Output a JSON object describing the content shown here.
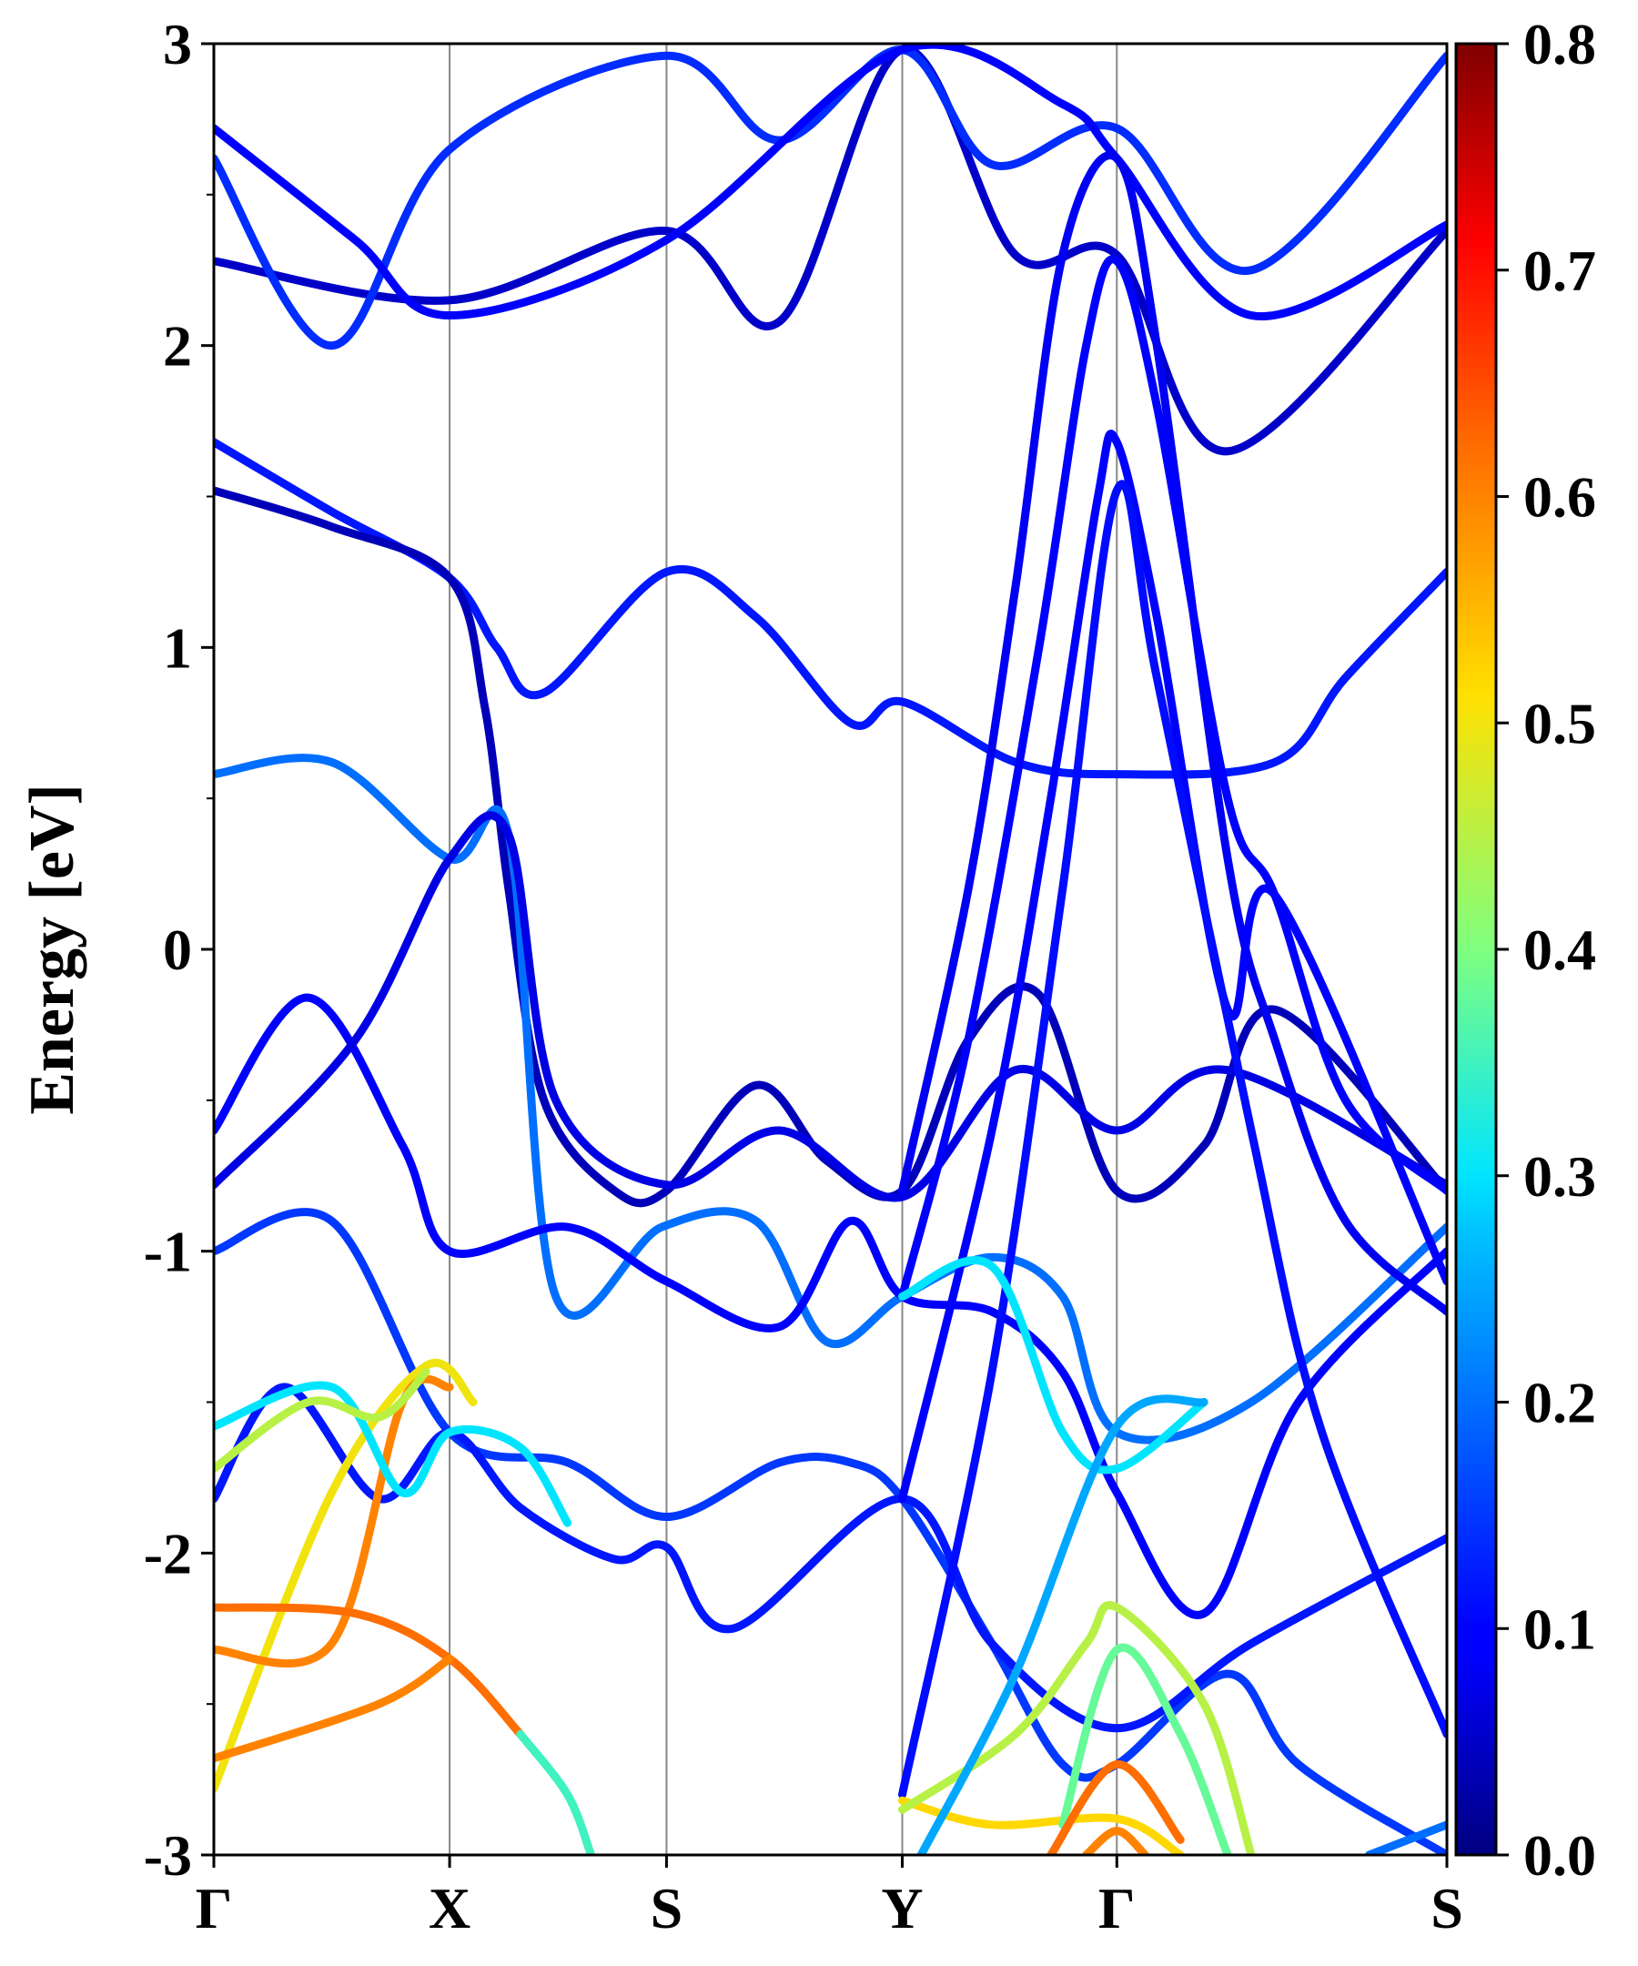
{
  "chart_data": {
    "type": "line",
    "title": "",
    "xlabel": "",
    "ylabel": "Energy [eV]",
    "ylim": [
      -3,
      3
    ],
    "yticks": [
      "-3",
      "-2",
      "-1",
      "0",
      "1",
      "2",
      "3"
    ],
    "kpath": {
      "labels": [
        "Γ",
        "X",
        "S",
        "Y",
        "Γ",
        "S"
      ],
      "positions": [
        0,
        1,
        1.92,
        2.92,
        3.83,
        5.23
      ]
    },
    "colorbar": {
      "range": [
        0.0,
        0.8
      ],
      "ticks": [
        "0.0",
        "0.1",
        "0.2",
        "0.3",
        "0.4",
        "0.5",
        "0.6",
        "0.7",
        "0.8"
      ],
      "colormap": "jet"
    },
    "grid": false,
    "bands": [
      {
        "weight": 0.12,
        "points": [
          [
            0,
            1.68
          ],
          [
            0.5,
            1.45
          ],
          [
            1,
            1.23
          ],
          [
            1.2,
            1.0
          ],
          [
            1.4,
            0.85
          ],
          [
            1.92,
            1.25
          ],
          [
            2.3,
            1.1
          ],
          [
            2.7,
            0.75
          ],
          [
            2.92,
            0.82
          ],
          [
            3.4,
            0.62
          ],
          [
            3.83,
            0.58
          ],
          [
            4.5,
            0.62
          ],
          [
            4.8,
            0.9
          ],
          [
            5.23,
            1.25
          ]
        ]
      },
      {
        "weight": 0.04,
        "points": [
          [
            0,
            1.52
          ],
          [
            0.5,
            1.4
          ],
          [
            1,
            1.23
          ],
          [
            1.15,
            0.8
          ],
          [
            1.25,
            0.2
          ],
          [
            1.4,
            -0.5
          ],
          [
            1.7,
            -0.8
          ],
          [
            1.92,
            -0.8
          ],
          [
            2.3,
            -0.45
          ],
          [
            2.6,
            -0.7
          ],
          [
            2.92,
            -0.8
          ],
          [
            3.2,
            -0.3
          ],
          [
            3.5,
            -0.15
          ],
          [
            3.83,
            -0.8
          ],
          [
            4.2,
            -0.65
          ],
          [
            4.5,
            -0.2
          ],
          [
            5.23,
            -0.8
          ]
        ]
      },
      {
        "weight": 0.2,
        "points": [
          [
            0,
            0.58
          ],
          [
            0.5,
            0.62
          ],
          [
            1,
            0.3
          ],
          [
            1.25,
            0.38
          ],
          [
            1.45,
            -1.15
          ],
          [
            1.9,
            -0.92
          ],
          [
            2.3,
            -0.9
          ],
          [
            2.6,
            -1.3
          ],
          [
            2.92,
            -1.15
          ],
          [
            3.3,
            -1.02
          ],
          [
            3.6,
            -1.15
          ],
          [
            3.83,
            -1.6
          ],
          [
            4.4,
            -1.5
          ],
          [
            5.23,
            -0.92
          ]
        ]
      },
      {
        "weight": 0.1,
        "points": [
          [
            0,
            -0.6
          ],
          [
            0.4,
            -0.16
          ],
          [
            0.8,
            -0.65
          ],
          [
            1,
            -1.0
          ],
          [
            1.5,
            -0.92
          ],
          [
            1.92,
            -1.1
          ],
          [
            2.4,
            -1.25
          ],
          [
            2.7,
            -0.9
          ],
          [
            2.92,
            -1.15
          ],
          [
            3.3,
            -1.2
          ],
          [
            3.6,
            -1.4
          ],
          [
            3.83,
            -1.8
          ],
          [
            4.2,
            -2.2
          ],
          [
            4.6,
            -1.5
          ],
          [
            5.23,
            -1.0
          ]
        ]
      },
      {
        "weight": 0.07,
        "points": [
          [
            0,
            -0.78
          ],
          [
            0.6,
            -0.3
          ],
          [
            1,
            0.3
          ],
          [
            1.25,
            0.38
          ],
          [
            1.45,
            -0.5
          ],
          [
            1.92,
            -0.78
          ],
          [
            2.4,
            -0.6
          ],
          [
            2.92,
            -0.82
          ],
          [
            3.4,
            -0.4
          ],
          [
            3.83,
            -0.6
          ],
          [
            4.3,
            -0.4
          ],
          [
            5.23,
            -0.78
          ]
        ]
      },
      {
        "weight": 0.15,
        "points": [
          [
            0,
            -1.0
          ],
          [
            0.5,
            -0.9
          ],
          [
            1,
            -1.6
          ],
          [
            1.5,
            -1.7
          ],
          [
            1.92,
            -1.88
          ],
          [
            2.4,
            -1.7
          ],
          [
            2.7,
            -1.7
          ],
          [
            2.92,
            -1.82
          ],
          [
            3.3,
            -2.3
          ],
          [
            3.6,
            -2.7
          ],
          [
            3.83,
            -2.7
          ],
          [
            4.3,
            -2.4
          ],
          [
            4.6,
            -2.7
          ],
          [
            5.23,
            -3.0
          ]
        ]
      },
      {
        "weight": 0.12,
        "points": [
          [
            0,
            -1.82
          ],
          [
            0.3,
            -1.45
          ],
          [
            0.7,
            -1.82
          ],
          [
            1,
            -1.6
          ],
          [
            1.3,
            -1.85
          ],
          [
            1.7,
            -2.02
          ],
          [
            1.92,
            -1.98
          ],
          [
            2.2,
            -2.25
          ],
          [
            2.92,
            -1.82
          ],
          [
            3.3,
            -2.3
          ],
          [
            3.83,
            -2.58
          ],
          [
            4.4,
            -2.3
          ],
          [
            5.23,
            -1.95
          ]
        ]
      },
      {
        "weight": 0.05,
        "points": [
          [
            0,
            2.28
          ],
          [
            1,
            2.15
          ],
          [
            1.92,
            2.38
          ],
          [
            2.4,
            2.08
          ],
          [
            2.92,
            2.98
          ],
          [
            3.4,
            2.3
          ],
          [
            3.83,
            2.3
          ],
          [
            4.3,
            1.65
          ],
          [
            5.23,
            2.38
          ]
        ]
      },
      {
        "weight": 0.14,
        "points": [
          [
            0,
            2.62
          ],
          [
            0.5,
            2.0
          ],
          [
            1,
            2.65
          ],
          [
            1.92,
            2.96
          ],
          [
            2.4,
            2.68
          ],
          [
            2.92,
            2.98
          ],
          [
            3.3,
            2.6
          ],
          [
            3.83,
            2.72
          ],
          [
            4.4,
            2.25
          ],
          [
            5.23,
            2.96
          ]
        ]
      },
      {
        "weight": 0.1,
        "points": [
          [
            0,
            2.72
          ],
          [
            0.6,
            2.35
          ],
          [
            1,
            2.1
          ],
          [
            1.92,
            2.35
          ],
          [
            2.92,
            2.98
          ],
          [
            3.6,
            2.8
          ],
          [
            3.83,
            2.62
          ],
          [
            4.4,
            2.1
          ],
          [
            5.23,
            2.4
          ]
        ]
      },
      {
        "weight": 0.08,
        "points": [
          [
            2.92,
            -0.8
          ],
          [
            3.2,
            0.2
          ],
          [
            3.4,
            1.2
          ],
          [
            3.6,
            2.3
          ],
          [
            3.83,
            2.62
          ],
          [
            4.0,
            2.0
          ],
          [
            4.3,
            0.3
          ],
          [
            4.5,
            -0.3
          ],
          [
            4.8,
            -0.9
          ],
          [
            5.23,
            -1.2
          ]
        ]
      },
      {
        "weight": 0.09,
        "points": [
          [
            2.92,
            -1.15
          ],
          [
            3.2,
            -0.3
          ],
          [
            3.5,
            1.0
          ],
          [
            3.7,
            2.0
          ],
          [
            3.83,
            2.28
          ],
          [
            4.0,
            1.8
          ],
          [
            4.3,
            0.5
          ],
          [
            4.5,
            0.18
          ],
          [
            4.8,
            -0.5
          ],
          [
            5.23,
            -0.8
          ]
        ]
      },
      {
        "weight": 0.1,
        "points": [
          [
            2.92,
            -1.82
          ],
          [
            3.3,
            -0.6
          ],
          [
            3.55,
            0.5
          ],
          [
            3.75,
            1.5
          ],
          [
            3.83,
            1.68
          ],
          [
            4.0,
            1.1
          ],
          [
            4.3,
            -0.2
          ],
          [
            4.5,
            0.18
          ],
          [
            5.23,
            -1.1
          ]
        ]
      },
      {
        "weight": 0.11,
        "points": [
          [
            2.92,
            -2.8
          ],
          [
            3.3,
            -1.4
          ],
          [
            3.6,
            0.2
          ],
          [
            3.83,
            1.52
          ],
          [
            4.0,
            0.9
          ],
          [
            4.4,
            -0.6
          ],
          [
            4.7,
            -1.6
          ],
          [
            5.23,
            -2.6
          ]
        ]
      },
      {
        "weight": 0.5,
        "points": [
          [
            0,
            -2.78
          ],
          [
            0.5,
            -1.8
          ],
          [
            0.9,
            -1.38
          ],
          [
            1.1,
            -1.5
          ]
        ]
      },
      {
        "weight": 0.6,
        "points": [
          [
            0,
            -2.32
          ],
          [
            0.5,
            -2.3
          ],
          [
            0.8,
            -1.5
          ],
          [
            1.0,
            -1.45
          ]
        ]
      },
      {
        "weight": 0.62,
        "points": [
          [
            0,
            -2.18
          ],
          [
            0.6,
            -2.2
          ],
          [
            1.0,
            -2.35
          ],
          [
            1.3,
            -2.6
          ]
        ]
      },
      {
        "weight": 0.6,
        "points": [
          [
            0,
            -2.68
          ],
          [
            0.7,
            -2.5
          ],
          [
            1.0,
            -2.35
          ]
        ]
      },
      {
        "weight": 0.3,
        "points": [
          [
            0,
            -1.58
          ],
          [
            0.5,
            -1.45
          ],
          [
            0.8,
            -1.8
          ],
          [
            1.0,
            -1.6
          ],
          [
            1.3,
            -1.65
          ],
          [
            1.5,
            -1.9
          ]
        ]
      },
      {
        "weight": 0.45,
        "points": [
          [
            0,
            -1.72
          ],
          [
            0.4,
            -1.5
          ],
          [
            0.7,
            -1.55
          ],
          [
            0.9,
            -1.4
          ]
        ]
      },
      {
        "weight": 0.35,
        "points": [
          [
            1.3,
            -2.6
          ],
          [
            1.5,
            -2.8
          ],
          [
            1.6,
            -3.0
          ]
        ]
      },
      {
        "weight": 0.3,
        "points": [
          [
            2.92,
            -1.15
          ],
          [
            3.3,
            -1.05
          ],
          [
            3.6,
            -1.6
          ],
          [
            3.83,
            -1.72
          ],
          [
            4.2,
            -1.5
          ]
        ]
      },
      {
        "weight": 0.52,
        "points": [
          [
            2.92,
            -2.82
          ],
          [
            3.3,
            -2.9
          ],
          [
            3.83,
            -2.88
          ],
          [
            4.1,
            -3.0
          ]
        ]
      },
      {
        "weight": 0.45,
        "points": [
          [
            2.92,
            -2.85
          ],
          [
            3.4,
            -2.6
          ],
          [
            3.7,
            -2.3
          ],
          [
            3.83,
            -2.18
          ],
          [
            4.2,
            -2.5
          ],
          [
            4.4,
            -3.0
          ]
        ]
      },
      {
        "weight": 0.38,
        "points": [
          [
            3.6,
            -2.9
          ],
          [
            3.83,
            -2.32
          ],
          [
            4.1,
            -2.6
          ],
          [
            4.3,
            -3.0
          ]
        ]
      },
      {
        "weight": 0.62,
        "points": [
          [
            3.55,
            -3.0
          ],
          [
            3.83,
            -2.7
          ],
          [
            4.1,
            -2.95
          ]
        ]
      },
      {
        "weight": 0.6,
        "points": [
          [
            3.7,
            -3.0
          ],
          [
            3.83,
            -2.92
          ],
          [
            3.95,
            -3.0
          ]
        ]
      },
      {
        "weight": 0.25,
        "points": [
          [
            3.0,
            -3.0
          ],
          [
            3.4,
            -2.4
          ],
          [
            3.83,
            -1.58
          ],
          [
            4.2,
            -1.5
          ]
        ]
      },
      {
        "weight": 0.2,
        "points": [
          [
            4.9,
            -3.0
          ],
          [
            5.23,
            -2.9
          ]
        ]
      }
    ]
  }
}
